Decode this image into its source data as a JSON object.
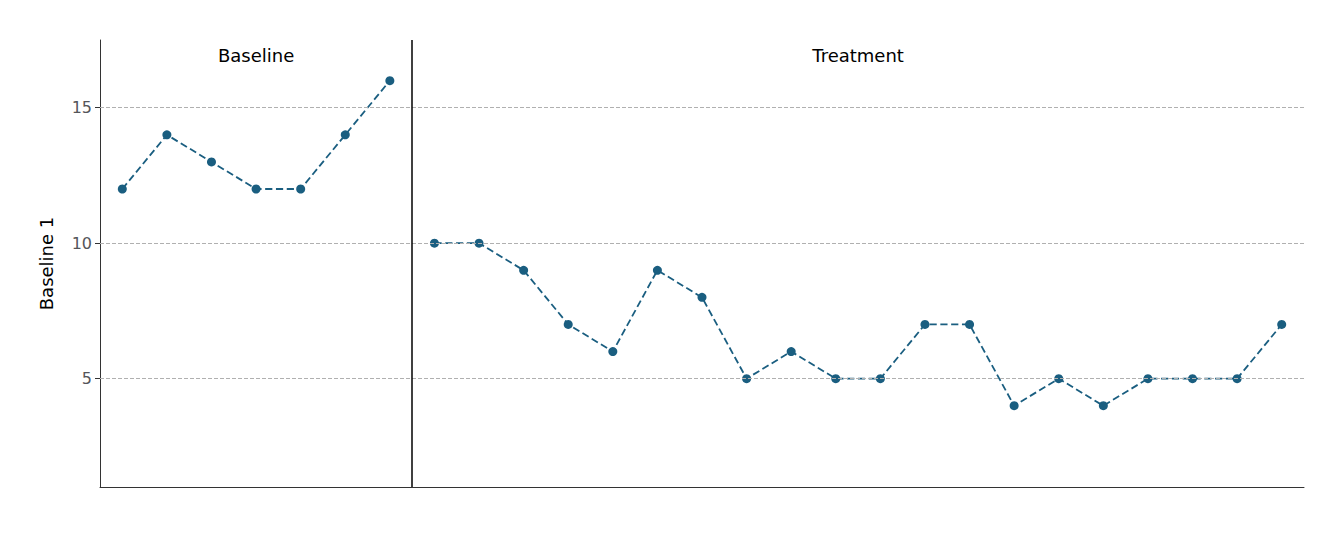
{
  "chart_data": {
    "type": "line",
    "ylabel": "Baseline 1",
    "series": [
      {
        "x": [
          1,
          2,
          3,
          4,
          5,
          6,
          7
        ],
        "values": [
          12,
          14,
          13,
          12,
          12,
          14,
          16
        ]
      },
      {
        "x": [
          8,
          9,
          10,
          11,
          12,
          13,
          14,
          15,
          16,
          17,
          18,
          19,
          20,
          21,
          22,
          23,
          24,
          25,
          26,
          27
        ],
        "values": [
          10,
          10,
          9,
          7,
          6,
          9,
          8,
          5,
          6,
          5,
          5,
          7,
          7,
          4,
          5,
          4,
          5,
          5,
          5,
          7
        ]
      }
    ],
    "color": "#1a5e80",
    "marker": "circle",
    "line_style": "dashed",
    "phase_boundary": 7.5,
    "annotations": [
      "Baseline",
      "Treatment"
    ],
    "xlim": [
      0.5,
      27.5
    ],
    "ylim": [
      1,
      17.5
    ],
    "yticks": [
      5,
      10,
      15
    ],
    "grid": true,
    "tick_labels": "y"
  }
}
